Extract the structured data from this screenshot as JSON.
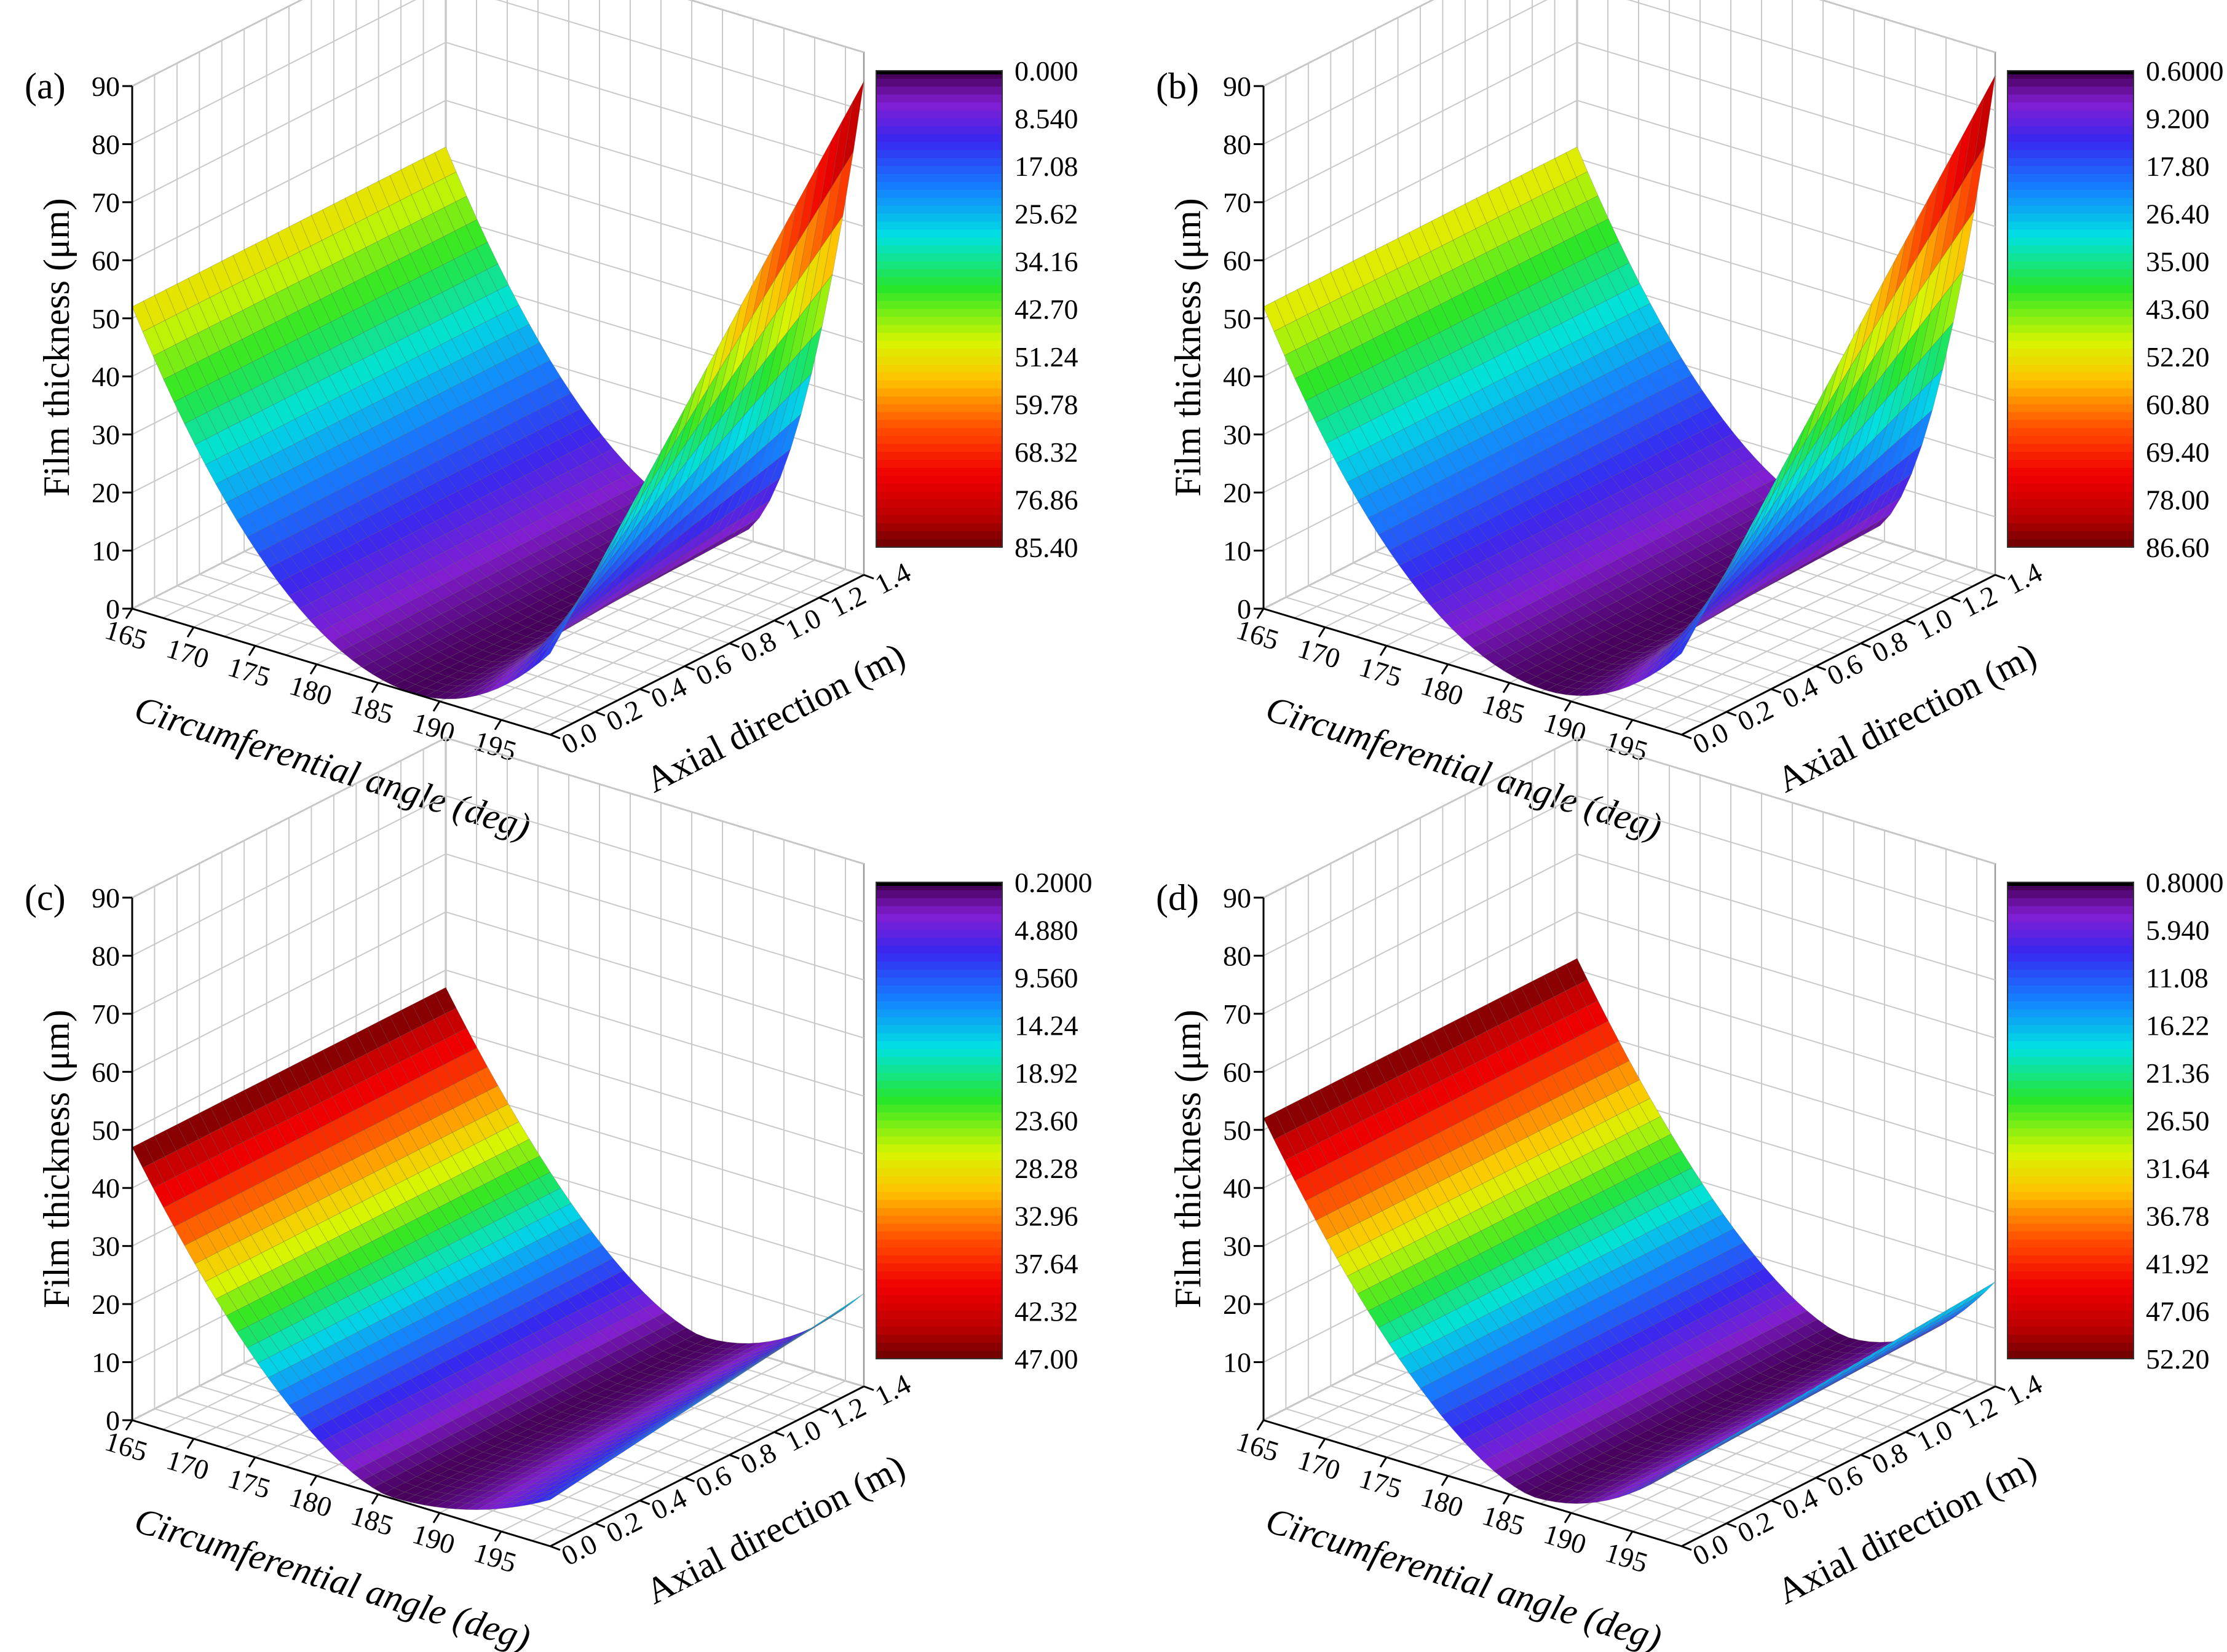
{
  "chart_data": [
    {
      "type": "surface3d",
      "panel_label": "(a)",
      "zlabel": "Film thickness (μm)",
      "xlabel": "Circumferential angle (deg)",
      "ylabel": "Axial direction (m)",
      "x_ticks": [
        "165",
        "170",
        "175",
        "180",
        "185",
        "190",
        "195"
      ],
      "y_ticks": [
        "0.0",
        "0.2",
        "0.4",
        "0.6",
        "0.8",
        "1.0",
        "1.2",
        "1.4"
      ],
      "z_ticks": [
        "0",
        "10",
        "20",
        "30",
        "40",
        "50",
        "60",
        "70",
        "80",
        "90"
      ],
      "xlim": [
        165,
        199
      ],
      "ylim": [
        0,
        1.4
      ],
      "zlim": [
        0,
        90
      ],
      "colorbar_ticks": [
        "0.000",
        "8.540",
        "17.08",
        "25.62",
        "34.16",
        "42.70",
        "51.24",
        "59.78",
        "68.32",
        "76.86",
        "85.40"
      ],
      "colorbar_range": [
        0.0,
        85.4
      ],
      "surface": {
        "z_left_front": 52,
        "z_left_back": 52,
        "z_right_front": 14,
        "z_right_back": 85,
        "z_min": 0,
        "min_angle": 188,
        "side_flatten": 0
      }
    },
    {
      "type": "surface3d",
      "panel_label": "(b)",
      "zlabel": "Film thickness (μm)",
      "xlabel": "Circumferential angle (deg)",
      "ylabel": "Axial direction (m)",
      "x_ticks": [
        "165",
        "170",
        "175",
        "180",
        "185",
        "190",
        "195"
      ],
      "y_ticks": [
        "0.0",
        "0.2",
        "0.4",
        "0.6",
        "0.8",
        "1.0",
        "1.2",
        "1.4"
      ],
      "z_ticks": [
        "0",
        "10",
        "20",
        "30",
        "40",
        "50",
        "60",
        "70",
        "80",
        "90"
      ],
      "xlim": [
        165,
        199
      ],
      "ylim": [
        0,
        1.4
      ],
      "zlim": [
        0,
        90
      ],
      "colorbar_ticks": [
        "0.6000",
        "9.200",
        "17.80",
        "26.40",
        "35.00",
        "43.60",
        "52.20",
        "60.80",
        "69.40",
        "78.00",
        "86.60"
      ],
      "colorbar_range": [
        0.6,
        86.6
      ],
      "surface": {
        "z_left_front": 52,
        "z_left_back": 52,
        "z_right_front": 14,
        "z_right_back": 86,
        "z_min": 0.6,
        "min_angle": 188,
        "side_flatten": 0
      }
    },
    {
      "type": "surface3d",
      "panel_label": "(c)",
      "zlabel": "Film thickness (μm)",
      "xlabel": "Circumferential angle (deg)",
      "ylabel": "Axial direction (m)",
      "x_ticks": [
        "165",
        "170",
        "175",
        "180",
        "185",
        "190",
        "195"
      ],
      "y_ticks": [
        "0.0",
        "0.2",
        "0.4",
        "0.6",
        "0.8",
        "1.0",
        "1.2",
        "1.4"
      ],
      "z_ticks": [
        "0",
        "10",
        "20",
        "30",
        "40",
        "50",
        "60",
        "70",
        "80",
        "90"
      ],
      "xlim": [
        165,
        199
      ],
      "ylim": [
        0,
        1.4
      ],
      "zlim": [
        0,
        90
      ],
      "colorbar_ticks": [
        "0.2000",
        "4.880",
        "9.560",
        "14.24",
        "18.92",
        "23.60",
        "28.28",
        "32.96",
        "37.64",
        "42.32",
        "47.00"
      ],
      "colorbar_range": [
        0.2,
        47.0
      ],
      "surface": {
        "z_left_front": 47,
        "z_left_back": 47,
        "z_right_front": 8,
        "z_right_back": 16,
        "z_min": 0.2,
        "min_angle": 186,
        "side_flatten": 1
      }
    },
    {
      "type": "surface3d",
      "panel_label": "(d)",
      "zlabel": "Film thickness (μm)",
      "xlabel": "Circumferential angle (deg)",
      "ylabel": "Axial direction (m)",
      "x_ticks": [
        "165",
        "170",
        "175",
        "180",
        "185",
        "190",
        "195"
      ],
      "y_ticks": [
        "0.0",
        "0.2",
        "0.4",
        "0.6",
        "0.8",
        "1.0",
        "1.2",
        "1.4"
      ],
      "z_ticks": [
        "10",
        "20",
        "30",
        "40",
        "50",
        "60",
        "70",
        "80",
        "90"
      ],
      "xlim": [
        165,
        199
      ],
      "ylim": [
        0,
        1.4
      ],
      "zlim": [
        0,
        90
      ],
      "colorbar_ticks": [
        "0.8000",
        "5.940",
        "11.08",
        "16.22",
        "21.36",
        "26.50",
        "31.64",
        "36.78",
        "41.92",
        "47.06",
        "52.20"
      ],
      "colorbar_range": [
        0.8,
        52.2
      ],
      "surface": {
        "z_left_front": 52,
        "z_left_back": 52,
        "z_right_front": 14,
        "z_right_back": 18,
        "z_min": 0.8,
        "min_angle": 187,
        "side_flatten": 1
      }
    }
  ]
}
